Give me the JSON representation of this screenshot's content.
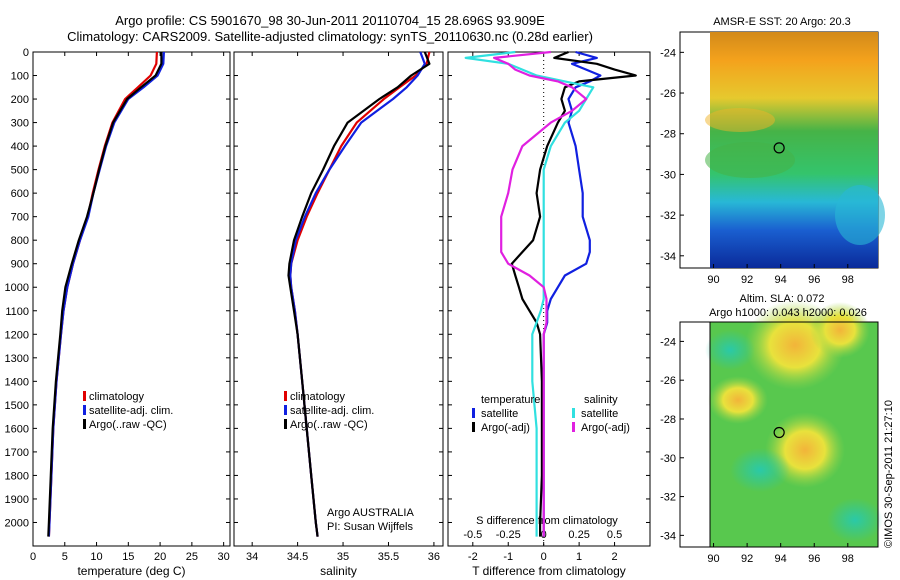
{
  "titles": {
    "line1": "Argo profile: CS 5901670_98 30-Jun-2011 20110704_15 28.696S 93.909E",
    "line2": "Climatology: CARS2009. Satellite-adjusted climatology: synTS_20110630.nc (0.28d earlier)"
  },
  "stamp": "©IMOS 30-Sep-2011 21:27:10",
  "note": {
    "line1": "Argo AUSTRALIA",
    "line2": "PI: Susan Wijffels"
  },
  "colors": {
    "climatology": "#e00000",
    "satellite": "#1020e0",
    "argo": "#000000",
    "sat_salinity": "#30e0e0",
    "argo_salinity": "#e020e0"
  },
  "chart_data": [
    {
      "type": "line",
      "panel": "temperature",
      "xlabel": "temperature (deg C)",
      "ylabel": "",
      "xlim": [
        0,
        31
      ],
      "ylim": [
        2100,
        0
      ],
      "xticks": [
        "0",
        "5",
        "10",
        "15",
        "20",
        "25",
        "30"
      ],
      "yticks": [
        "0",
        "100",
        "200",
        "300",
        "400",
        "500",
        "600",
        "700",
        "800",
        "900",
        "1000",
        "1100",
        "1200",
        "1300",
        "1400",
        "1500",
        "1600",
        "1700",
        "1800",
        "1900",
        "2000"
      ],
      "depth": [
        0,
        50,
        100,
        150,
        200,
        300,
        400,
        500,
        600,
        700,
        800,
        900,
        1000,
        1100,
        1200,
        1400,
        1600,
        1800,
        2000,
        2060
      ],
      "legend": [
        "climatology",
        "satellite-adj. clim.",
        "Argo(..raw -QC)"
      ],
      "series": [
        {
          "name": "climatology",
          "color": "#e00000",
          "values": [
            19.5,
            19.4,
            18.5,
            16.5,
            14.5,
            12.5,
            11.3,
            10.3,
            9.4,
            8.6,
            7.4,
            6.3,
            5.4,
            4.8,
            4.4,
            3.7,
            3.2,
            2.9,
            2.6,
            2.5
          ]
        },
        {
          "name": "satellite-adj. clim.",
          "color": "#1020e0",
          "values": [
            20.6,
            20.5,
            19.6,
            17.4,
            15.0,
            12.8,
            11.5,
            10.5,
            9.5,
            8.7,
            7.4,
            6.3,
            5.4,
            4.8,
            4.4,
            3.7,
            3.2,
            2.9,
            2.6,
            2.5
          ]
        },
        {
          "name": "Argo(..raw -QC)",
          "color": "#000000",
          "values": [
            20.2,
            20.2,
            19.3,
            17.0,
            14.8,
            12.6,
            11.4,
            10.4,
            9.5,
            8.5,
            7.2,
            6.1,
            5.1,
            4.6,
            4.3,
            3.6,
            3.1,
            2.8,
            2.5,
            2.4
          ]
        }
      ]
    },
    {
      "type": "line",
      "panel": "salinity",
      "xlabel": "salinity",
      "ylabel": "",
      "xlim": [
        33.8,
        36.1
      ],
      "ylim": [
        2100,
        0
      ],
      "xticks": [
        "34",
        "34.5",
        "35",
        "35.5",
        "36"
      ],
      "depth": [
        0,
        50,
        100,
        150,
        200,
        300,
        400,
        500,
        600,
        700,
        800,
        900,
        950,
        1000,
        1100,
        1200,
        1400,
        1600,
        1800,
        2000,
        2060
      ],
      "legend": [
        "climatology",
        "satellite-adj. clim.",
        "Argo(..raw -QC)"
      ],
      "series": [
        {
          "name": "climatology",
          "color": "#e00000",
          "values": [
            35.95,
            35.92,
            35.8,
            35.62,
            35.45,
            35.15,
            34.98,
            34.85,
            34.72,
            34.6,
            34.5,
            34.43,
            34.42,
            34.43,
            34.47,
            34.5,
            34.55,
            34.6,
            34.65,
            34.7,
            34.72
          ]
        },
        {
          "name": "satellite-adj. clim.",
          "color": "#1020e0",
          "values": [
            35.85,
            35.9,
            35.82,
            35.7,
            35.55,
            35.2,
            35.02,
            34.85,
            34.7,
            34.58,
            34.48,
            34.43,
            34.42,
            34.43,
            34.47,
            34.5,
            34.55,
            34.6,
            34.65,
            34.7,
            34.72
          ]
        },
        {
          "name": "Argo(..raw -QC)",
          "color": "#000000",
          "values": [
            35.9,
            35.95,
            35.75,
            35.6,
            35.4,
            35.05,
            34.9,
            34.78,
            34.65,
            34.55,
            34.46,
            34.41,
            34.4,
            34.42,
            34.46,
            34.5,
            34.55,
            34.6,
            34.65,
            34.7,
            34.72
          ]
        }
      ]
    },
    {
      "type": "line",
      "panel": "difference",
      "xlabel": "T difference from climatology",
      "xlabel_top": "S difference from climatology",
      "xlim": [
        -2.7,
        3.0
      ],
      "ylim": [
        2100,
        0
      ],
      "xticks": [
        "-2",
        "-1",
        "0",
        "1",
        "2"
      ],
      "sticks": [
        "-0.5",
        "-0.25",
        "0",
        "0.25",
        "0.5"
      ],
      "legend_temperature": [
        "temperature",
        "satellite",
        "Argo(-adj)"
      ],
      "legend_salinity": [
        "salinity",
        "satellite",
        "Argo(-adj)"
      ],
      "depth": [
        0,
        25,
        50,
        75,
        100,
        125,
        150,
        200,
        250,
        300,
        400,
        500,
        600,
        700,
        800,
        850,
        900,
        950,
        1000,
        1050,
        1100,
        1150,
        1200,
        1400,
        1600,
        1800,
        2000,
        2060
      ],
      "series": [
        {
          "name": "temperature satellite",
          "color": "#1020e0",
          "values": [
            0.9,
            1.5,
            0.8,
            1.2,
            1.6,
            1.3,
            0.9,
            0.7,
            0.8,
            0.7,
            0.9,
            1.0,
            1.1,
            1.1,
            1.3,
            1.3,
            1.2,
            0.6,
            0.4,
            0.2,
            0.1,
            0.1,
            0.0,
            0.0,
            0.0,
            0.0,
            0.0,
            0.0
          ]
        },
        {
          "name": "temperature Argo(-adj)",
          "color": "#000000",
          "values": [
            0.7,
            0.3,
            1.5,
            2.0,
            2.6,
            1.0,
            0.6,
            0.5,
            0.6,
            0.4,
            0.1,
            -0.1,
            -0.2,
            -0.1,
            -0.3,
            -0.6,
            -0.9,
            -0.8,
            -0.7,
            -0.6,
            -0.4,
            -0.2,
            -0.1,
            -0.05,
            -0.05,
            -0.05,
            -0.1,
            -0.1
          ]
        },
        {
          "name": "salinity satellite",
          "color": "#30e0e0",
          "values": [
            -0.2,
            -0.55,
            -0.25,
            -0.15,
            -0.05,
            0.15,
            0.35,
            0.3,
            0.25,
            0.15,
            0.05,
            0.0,
            0.0,
            0.0,
            0.0,
            0.0,
            0.0,
            0.0,
            0.0,
            0.0,
            -0.02,
            -0.05,
            -0.08,
            -0.08,
            -0.05,
            -0.05,
            -0.05,
            -0.05
          ]
        },
        {
          "name": "salinity Argo(-adj)",
          "color": "#e020e0",
          "values": [
            0.05,
            -0.35,
            -0.25,
            -0.2,
            -0.1,
            0.1,
            0.2,
            0.3,
            0.2,
            0.05,
            -0.15,
            -0.22,
            -0.25,
            -0.3,
            -0.3,
            -0.3,
            -0.25,
            -0.1,
            0.0,
            0.02,
            0.02,
            0.02,
            0.0,
            0.0,
            0.0,
            0.0,
            0.0,
            0.0
          ]
        }
      ]
    },
    {
      "type": "heatmap",
      "panel": "sst_map",
      "title": "AMSR-E SST: 20 Argo: 20.3",
      "xticks": [
        "90",
        "92",
        "94",
        "96",
        "98"
      ],
      "yticks": [
        "-24",
        "-26",
        "-28",
        "-30",
        "-32",
        "-34"
      ],
      "xlim": [
        88.0,
        99.8
      ],
      "ylim": [
        -34.6,
        -23.0
      ],
      "marker": {
        "lon": 93.909,
        "lat": -28.696
      }
    },
    {
      "type": "heatmap",
      "panel": "sla_map",
      "title": "Altim. SLA: 0.072",
      "subtitle": "Argo h1000: 0.043 h2000: 0.026",
      "xticks": [
        "90",
        "92",
        "94",
        "96",
        "98"
      ],
      "yticks": [
        "-24",
        "-26",
        "-28",
        "-30",
        "-32",
        "-34"
      ],
      "xlim": [
        88.0,
        99.8
      ],
      "ylim": [
        -34.6,
        -23.0
      ],
      "marker": {
        "lon": 93.909,
        "lat": -28.696
      }
    }
  ]
}
